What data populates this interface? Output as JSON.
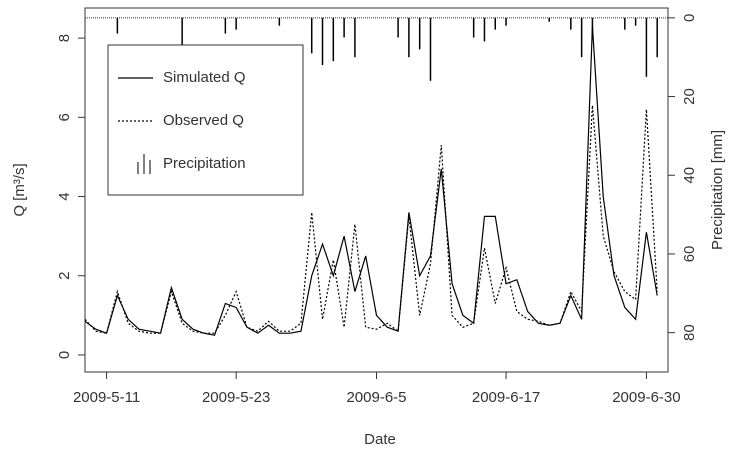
{
  "chart_data": {
    "type": "hydrograph",
    "xlabel": "Date",
    "ylabel": "Q [m³/s]",
    "y2label": "Precipitation [mm]",
    "x": [
      "2009-5-9",
      "2009-5-10",
      "2009-5-11",
      "2009-5-12",
      "2009-5-13",
      "2009-5-14",
      "2009-5-15",
      "2009-5-16",
      "2009-5-17",
      "2009-5-18",
      "2009-5-19",
      "2009-5-20",
      "2009-5-21",
      "2009-5-22",
      "2009-5-23",
      "2009-5-24",
      "2009-5-25",
      "2009-5-26",
      "2009-5-27",
      "2009-5-28",
      "2009-5-29",
      "2009-5-30",
      "2009-5-31",
      "2009-6-1",
      "2009-6-2",
      "2009-6-3",
      "2009-6-4",
      "2009-6-5",
      "2009-6-6",
      "2009-6-7",
      "2009-6-8",
      "2009-6-9",
      "2009-6-10",
      "2009-6-11",
      "2009-6-12",
      "2009-6-13",
      "2009-6-14",
      "2009-6-15",
      "2009-6-16",
      "2009-6-17",
      "2009-6-18",
      "2009-6-19",
      "2009-6-20",
      "2009-6-21",
      "2009-6-22",
      "2009-6-23",
      "2009-6-24",
      "2009-6-25",
      "2009-6-26",
      "2009-6-27",
      "2009-6-28",
      "2009-6-29",
      "2009-6-30",
      "2009-7-1"
    ],
    "series": [
      {
        "name": "Simulated Q",
        "color": "#000000",
        "style": "solid",
        "values": [
          0.85,
          0.65,
          0.55,
          1.5,
          0.9,
          0.65,
          0.6,
          0.55,
          1.7,
          0.9,
          0.65,
          0.55,
          0.5,
          1.3,
          1.2,
          0.7,
          0.55,
          0.75,
          0.55,
          0.55,
          0.6,
          2.0,
          2.8,
          2.0,
          3.0,
          1.6,
          2.5,
          1.0,
          0.7,
          0.6,
          3.6,
          2.0,
          2.5,
          4.7,
          1.8,
          1.0,
          0.8,
          3.5,
          3.5,
          1.8,
          1.9,
          1.1,
          0.8,
          0.75,
          0.8,
          1.5,
          0.9,
          8.3,
          4.0,
          2.0,
          1.2,
          0.9,
          3.1,
          1.5
        ]
      },
      {
        "name": "Observed Q",
        "color": "#000000",
        "style": "dotted",
        "values": [
          0.9,
          0.6,
          0.55,
          1.6,
          0.8,
          0.6,
          0.55,
          0.55,
          1.6,
          0.8,
          0.6,
          0.55,
          0.55,
          1.0,
          1.6,
          0.7,
          0.6,
          0.85,
          0.6,
          0.6,
          0.8,
          3.6,
          0.9,
          2.4,
          0.7,
          3.3,
          0.7,
          0.65,
          0.8,
          0.6,
          3.5,
          1.0,
          2.3,
          5.3,
          1.0,
          0.7,
          0.8,
          2.7,
          1.3,
          2.2,
          1.1,
          0.9,
          0.85,
          0.75,
          0.8,
          1.6,
          1.1,
          6.3,
          3.0,
          2.1,
          1.6,
          1.4,
          6.2,
          1.6
        ]
      },
      {
        "name": "Precipitation",
        "color": "#000000",
        "style": "bars",
        "axis": "y2",
        "values": [
          0,
          0,
          0,
          4,
          0,
          0,
          0,
          0,
          0,
          7,
          0,
          0,
          0,
          4,
          3,
          0,
          0,
          0,
          2,
          0,
          0,
          9,
          12,
          11,
          5,
          10,
          0,
          0,
          0,
          5,
          10,
          8,
          16,
          0,
          0,
          0,
          5,
          6,
          3,
          2,
          0,
          0,
          0,
          1,
          0,
          3,
          10,
          5,
          0,
          0,
          3,
          2,
          15,
          10
        ]
      }
    ],
    "xlim": [
      "2009-5-9",
      "2009-7-2"
    ],
    "xticks": [
      "2009-5-11",
      "2009-5-23",
      "2009-6-5",
      "2009-6-17",
      "2009-6-30"
    ],
    "ylim": [
      -0.43,
      8.76
    ],
    "yticks": [
      0,
      2,
      4,
      6,
      8
    ],
    "y2lim": [
      90,
      -2.5
    ],
    "y2ticks": [
      0,
      20,
      40,
      60,
      80
    ],
    "legend": "top-left"
  }
}
